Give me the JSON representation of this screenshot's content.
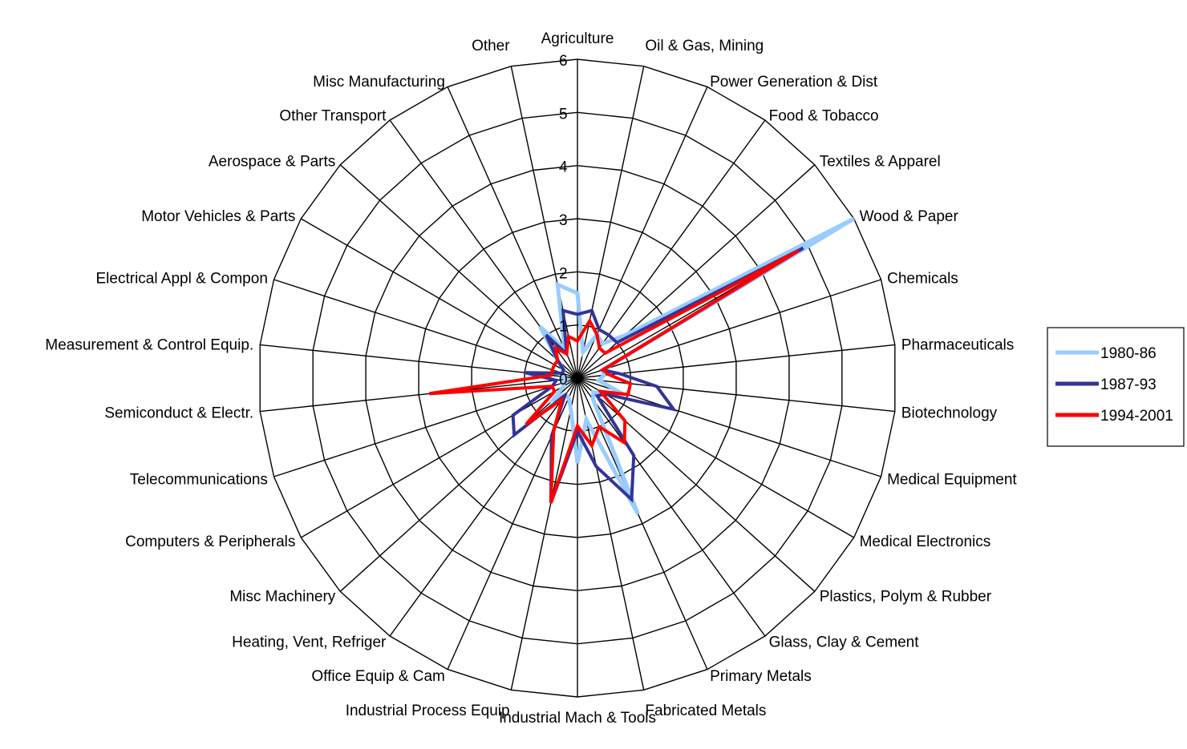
{
  "chart_data": {
    "type": "radar",
    "categories": [
      "Agriculture",
      "Oil & Gas, Mining",
      "Power Generation & Dist",
      "Food & Tobacco",
      "Textiles & Apparel",
      "Wood & Paper",
      "Chemicals",
      "Pharmaceuticals",
      "Biotechnology",
      "Medical Equipment",
      "Medical Electronics",
      "Plastics, Polym & Rubber",
      "Glass, Clay & Cement",
      "Primary Metals",
      "Fabricated Metals",
      "Industrial Mach & Tools",
      "Industrial Process Equip",
      "Office Equip & Cam",
      "Heating, Vent, Refriger",
      "Misc Machinery",
      "Computers & Peripherals",
      "Telecommunications",
      "Semiconduct & Electr.",
      "Measurement & Control Equip.",
      "Electrical Appl & Compon",
      "Motor Vehicles & Parts",
      "Aerospace & Parts",
      "Other Transport",
      "Misc Manufacturing",
      "Other"
    ],
    "rlim": [
      0,
      6
    ],
    "rticks": [
      "0",
      "1",
      "2",
      "3",
      "4",
      "5",
      "6"
    ],
    "grid": true,
    "legend_position": "right",
    "series": [
      {
        "name": "1980-86",
        "color": "#99ccff",
        "values": [
          1.6,
          0.5,
          0.9,
          0.8,
          1.2,
          6.0,
          0.5,
          0.5,
          0.4,
          0.8,
          0.6,
          0.4,
          0.5,
          2.8,
          0.8,
          1.6,
          0.6,
          0.4,
          0.4,
          0.6,
          0.3,
          0.3,
          0.2,
          0.3,
          0.3,
          0.3,
          0.5,
          1.2,
          0.6,
          1.8
        ]
      },
      {
        "name": "1987-93",
        "color": "#333399",
        "values": [
          1.2,
          1.3,
          1.0,
          1.0,
          1.0,
          4.9,
          0.5,
          0.8,
          1.5,
          1.9,
          0.6,
          0.5,
          1.8,
          2.5,
          1.7,
          1.0,
          2.4,
          1.2,
          0.4,
          1.6,
          1.4,
          0.5,
          0.4,
          1.0,
          0.3,
          0.3,
          0.5,
          1.0,
          0.5,
          1.3
        ]
      },
      {
        "name": "1994-2001",
        "color": "#ff0000",
        "values": [
          0.7,
          1.1,
          0.9,
          0.7,
          0.7,
          4.8,
          0.5,
          0.6,
          1.0,
          1.0,
          0.5,
          1.2,
          1.5,
          1.0,
          1.3,
          0.9,
          2.4,
          1.1,
          0.5,
          1.3,
          0.5,
          0.5,
          2.8,
          0.5,
          0.5,
          0.5,
          0.5,
          0.7,
          0.5,
          0.8
        ]
      }
    ]
  }
}
